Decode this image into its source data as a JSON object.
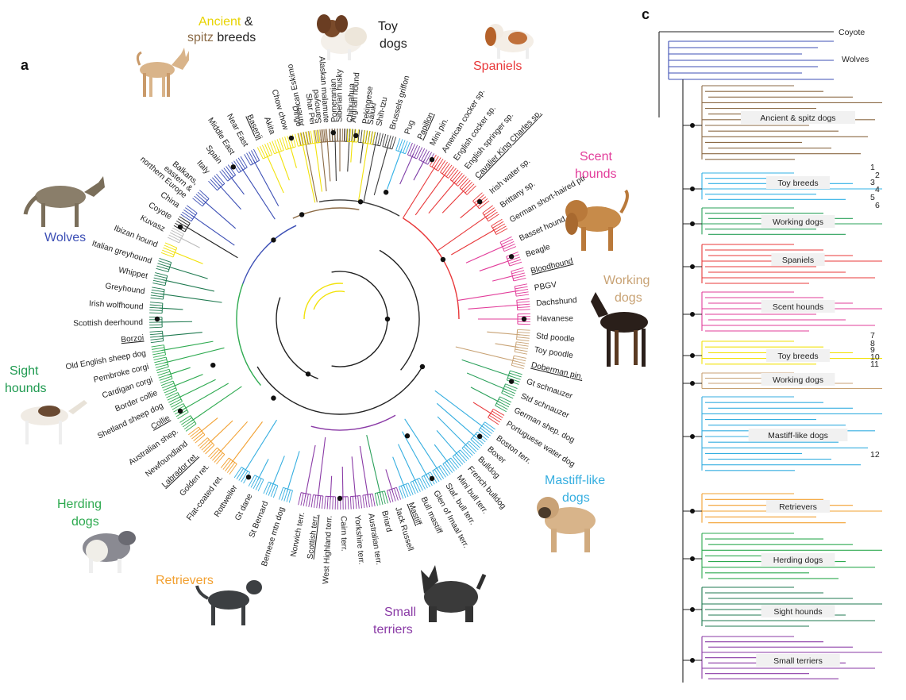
{
  "panels": {
    "a": "a",
    "c": "c"
  },
  "colors": {
    "wolf": "#3c4fb5",
    "ancient": "#f2e20a",
    "spitz": "#8b6a45",
    "toy": "#3a3a3a",
    "toyblue": "#30b0e6",
    "toypurple": "#7d3aa6",
    "spaniel": "#e8383a",
    "scent": "#e23c9a",
    "working": "#c8a274",
    "workgreen": "#2aa05a",
    "mastiff": "#35aee0",
    "smallterrier": "#8a3aa6",
    "retriever": "#f2a030",
    "herding": "#2eaa50",
    "sight": "#1f7a50",
    "grey": "#bbbbbb",
    "black": "#222222"
  },
  "group_labels": {
    "ancient_a": "Ancient",
    "ancient_amp": " &",
    "ancient_b": "spitz",
    "ancient_c": " breeds",
    "toy_a": "Toy",
    "toy_b": "dogs",
    "spaniels": "Spaniels",
    "scent_a": "Scent",
    "scent_b": "hounds",
    "working_a": "Working",
    "working_b": "dogs",
    "wolves": "Wolves",
    "sight_a": "Sight",
    "sight_b": "hounds",
    "herding_a": "Herding",
    "herding_b": "dogs",
    "retrievers": "Retrievers",
    "small_a": "Small",
    "small_b": "terriers",
    "mastiff_a": "Mastiff-like",
    "mastiff_b": "dogs"
  },
  "circle_leaves": [
    {
      "label": "American Eskimo",
      "angle": -101,
      "group": "spitz"
    },
    {
      "label": "Samoyed",
      "angle": -96,
      "group": "spitz"
    },
    {
      "label": "Pomeranian",
      "angle": -91.5,
      "group": "toy"
    },
    {
      "label": "Chihuahua",
      "angle": -87,
      "group": "toy"
    },
    {
      "label": "Pekingese",
      "angle": -82.5,
      "group": "toy"
    },
    {
      "label": "Shih-tzu",
      "angle": -78.5,
      "group": "toy"
    },
    {
      "label": "Brussels griffon",
      "angle": -74.5,
      "group": "toy"
    },
    {
      "label": "Pug",
      "angle": -70,
      "group": "toyblue"
    },
    {
      "label": "Papillon",
      "angle": -66,
      "group": "toypurple",
      "underline": true
    },
    {
      "label": "Mini pin.",
      "angle": -62,
      "group": "toypurple"
    },
    {
      "label": "American cocker sp.",
      "angle": -58,
      "group": "spaniel"
    },
    {
      "label": "English cocker sp.",
      "angle": -54,
      "group": "spaniel"
    },
    {
      "label": "English springer sp.",
      "angle": -50,
      "group": "spaniel"
    },
    {
      "label": "Cavalier King Charles sp.",
      "angle": -46,
      "group": "spaniel",
      "underline": true
    },
    {
      "label": "Irish water sp.",
      "angle": -40,
      "group": "spaniel"
    },
    {
      "label": "Brittany sp.",
      "angle": -35,
      "group": "spaniel"
    },
    {
      "label": "German short-haired ptr",
      "angle": -30,
      "group": "spaniel"
    },
    {
      "label": "Basset hound",
      "angle": -24,
      "group": "scent"
    },
    {
      "label": "Beagle",
      "angle": -19,
      "group": "scent"
    },
    {
      "label": "Bloodhound",
      "angle": -14,
      "group": "scent",
      "underline": true
    },
    {
      "label": "PBGV",
      "angle": -9,
      "group": "scent"
    },
    {
      "label": "Dachshund",
      "angle": -4.5,
      "group": "scent"
    },
    {
      "label": "Havanese",
      "angle": 0,
      "group": "scent"
    },
    {
      "label": "Std poodle",
      "angle": 5,
      "group": "working"
    },
    {
      "label": "Toy poodle",
      "angle": 9,
      "group": "working"
    },
    {
      "label": "Doberman pin.",
      "angle": 13.5,
      "group": "working",
      "underline": true
    },
    {
      "label": "Gt schnauzer",
      "angle": 18.5,
      "group": "workgreen"
    },
    {
      "label": "Std schnauzer",
      "angle": 23,
      "group": "workgreen"
    },
    {
      "label": "German shep. dog",
      "angle": 27.5,
      "group": "workgreen"
    },
    {
      "label": "Portuguese water dog",
      "angle": 32,
      "group": "spaniel"
    },
    {
      "label": "Boston terr.",
      "angle": 37,
      "group": "mastiff"
    },
    {
      "label": "Boxer",
      "angle": 41,
      "group": "mastiff"
    },
    {
      "label": "Bulldog",
      "angle": 45,
      "group": "mastiff"
    },
    {
      "label": "French bulldog",
      "angle": 49,
      "group": "mastiff"
    },
    {
      "label": "Mini bull terr.",
      "angle": 53,
      "group": "mastiff"
    },
    {
      "label": "Staf. bull terr.",
      "angle": 57,
      "group": "mastiff"
    },
    {
      "label": "Glen of Imaal terr.",
      "angle": 61,
      "group": "mastiff"
    },
    {
      "label": "Bull mastiff",
      "angle": 65,
      "group": "mastiff"
    },
    {
      "label": "Mastiff",
      "angle": 69,
      "group": "mastiff",
      "underline": true
    },
    {
      "label": "Jack Russell",
      "angle": 73,
      "group": "smallterrier"
    },
    {
      "label": "Briard",
      "angle": 77,
      "group": "workgreen"
    },
    {
      "label": "Australian terr.",
      "angle": 81,
      "group": "smallterrier"
    },
    {
      "label": "Yorkshire terr.",
      "angle": 85,
      "group": "smallterrier"
    },
    {
      "label": "Cairn terr.",
      "angle": 89,
      "group": "smallterrier"
    },
    {
      "label": "West Highland terr.",
      "angle": 93,
      "group": "smallterrier"
    },
    {
      "label": "Scottish terr.",
      "angle": 97,
      "group": "smallterrier",
      "underline": true
    },
    {
      "label": "Norwich terr.",
      "angle": 101,
      "group": "smallterrier"
    },
    {
      "label": "Bernese mtn dog",
      "angle": 107,
      "group": "mastiff"
    },
    {
      "label": "St Bernard",
      "angle": 112,
      "group": "mastiff"
    },
    {
      "label": "Gt dane",
      "angle": 117,
      "group": "mastiff"
    },
    {
      "label": "Rottweiler",
      "angle": 122,
      "group": "mastiff"
    },
    {
      "label": "Flat-coated ret.",
      "angle": 127,
      "group": "retriever"
    },
    {
      "label": "Golden ret.",
      "angle": 132,
      "group": "retriever"
    },
    {
      "label": "Labrador ret.",
      "angle": 136.5,
      "group": "retriever",
      "underline": true
    },
    {
      "label": "Newfoundland",
      "angle": 141,
      "group": "retriever"
    },
    {
      "label": "Australian shep.",
      "angle": 145.5,
      "group": "herding"
    },
    {
      "label": "Collie",
      "angle": 150,
      "group": "herding",
      "underline": true
    },
    {
      "label": "Shetland sheep dog",
      "angle": 154,
      "group": "herding"
    },
    {
      "label": "Border collie",
      "angle": 158,
      "group": "herding"
    },
    {
      "label": "Cardigan corgi",
      "angle": 162,
      "group": "herding"
    },
    {
      "label": "Pembroke corgi",
      "angle": 166,
      "group": "herding"
    },
    {
      "label": "Old English sheep dog",
      "angle": 170,
      "group": "herding"
    },
    {
      "label": "Borzoi",
      "angle": 174.5,
      "group": "sight",
      "underline": true
    },
    {
      "label": "Scottish deerhound",
      "angle": 179,
      "group": "sight"
    },
    {
      "label": "Irish wolfhound",
      "angle": 183.5,
      "group": "sight"
    },
    {
      "label": "Greyhound",
      "angle": 188,
      "group": "sight"
    },
    {
      "label": "Whippet",
      "angle": 192.5,
      "group": "sight"
    },
    {
      "label": "Italian greyhound",
      "angle": 197,
      "group": "sight"
    },
    {
      "label": "Ibizan hound",
      "angle": 202,
      "group": "ancient"
    },
    {
      "label": "Kuvasz",
      "angle": 207,
      "group": "grey"
    },
    {
      "label": "Coyote",
      "angle": 211,
      "group": "black"
    },
    {
      "label": "China",
      "angle": 215,
      "group": "wolf"
    },
    {
      "label": "Balkans,\neastern &\nnorthern Europe",
      "angle": 221,
      "group": "wolf"
    },
    {
      "label": "Italy",
      "angle": 228,
      "group": "wolf"
    },
    {
      "label": "Spain",
      "angle": 232.5,
      "group": "wolf"
    },
    {
      "label": "Middle East",
      "angle": 237,
      "group": "wolf"
    },
    {
      "label": "Near East",
      "angle": 241.5,
      "group": "wolf"
    },
    {
      "label": "Basenji",
      "angle": 246,
      "group": "ancient",
      "underline": true
    },
    {
      "label": "Akita",
      "angle": 250,
      "group": "ancient"
    },
    {
      "label": "Chow chow",
      "angle": 254,
      "group": "ancient"
    },
    {
      "label": "Dingo",
      "angle": 258,
      "group": "ancient"
    },
    {
      "label": "Shar Pei",
      "angle": 262,
      "group": "ancient"
    },
    {
      "label": "Alaskan malamute",
      "angle": 266,
      "group": "spitz"
    },
    {
      "label": "Siberian husky",
      "angle": 270,
      "group": "spitz"
    },
    {
      "label": "Afghan hound",
      "angle": 274,
      "group": "ancient"
    },
    {
      "label": "Saluki",
      "angle": 279,
      "group": "ancient"
    }
  ],
  "panel_c": {
    "coyote": "Coyote",
    "wolves": "Wolves",
    "sections": [
      {
        "label": "Ancient & spitz dogs",
        "group": "spitz"
      },
      {
        "label": "Toy breeds",
        "group": "toyblue"
      },
      {
        "label": "Working dogs",
        "group": "workgreen"
      },
      {
        "label": "Spaniels",
        "group": "spaniel"
      },
      {
        "label": "Scent hounds",
        "group": "scent"
      },
      {
        "label": "Toy breeds",
        "group": "ancient"
      },
      {
        "label": "Working dogs",
        "group": "working"
      },
      {
        "label": "Mastiff-like dogs",
        "group": "mastiff"
      },
      {
        "label": "Retrievers",
        "group": "retriever"
      },
      {
        "label": "Herding dogs",
        "group": "herding"
      },
      {
        "label": "Sight hounds",
        "group": "sight"
      },
      {
        "label": "Small terriers",
        "group": "smallterrier"
      }
    ],
    "numbers": [
      "1",
      "2",
      "3",
      "4",
      "5",
      "6",
      "7",
      "8",
      "9",
      "10",
      "11",
      "12"
    ]
  },
  "illustrations": [
    {
      "name": "basenji-dog-icon"
    },
    {
      "name": "papillon-dog-icon"
    },
    {
      "name": "spaniel-dog-icon"
    },
    {
      "name": "bloodhound-dog-icon"
    },
    {
      "name": "doberman-dog-icon"
    },
    {
      "name": "mastiff-dog-icon"
    },
    {
      "name": "scottish-terrier-dog-icon"
    },
    {
      "name": "labrador-dog-icon"
    },
    {
      "name": "collie-dog-icon"
    },
    {
      "name": "borzoi-dog-icon"
    },
    {
      "name": "wolf-icon"
    }
  ]
}
